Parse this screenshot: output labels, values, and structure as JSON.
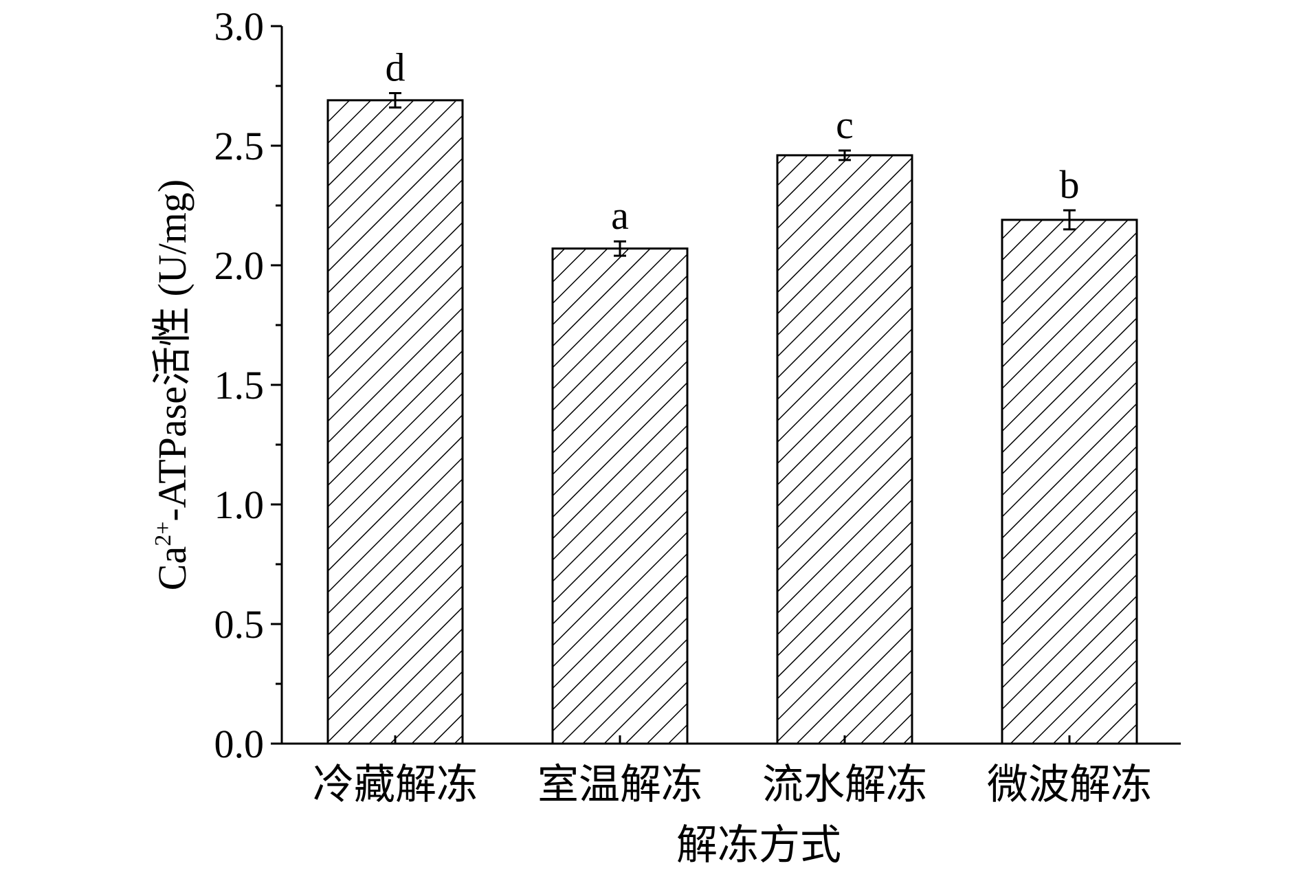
{
  "chart_data": {
    "type": "bar",
    "y_label": [
      "Ca",
      "2+",
      "-ATPase活性 (U/mg)"
    ],
    "x_label": "解冻方式",
    "categories": [
      "冷藏解冻",
      "室温解冻",
      "流水解冻",
      "微波解冻"
    ],
    "values": [
      2.69,
      2.07,
      2.46,
      2.19
    ],
    "errors": [
      0.03,
      0.03,
      0.02,
      0.04
    ],
    "annotations": [
      "d",
      "a",
      "c",
      "b"
    ],
    "ylim": [
      0,
      3.0
    ],
    "yticks": [
      {
        "value": 0,
        "label": "0.0"
      },
      {
        "value": 0.5,
        "label": "0.5"
      },
      {
        "value": 1.0,
        "label": "1.0"
      },
      {
        "value": 1.5,
        "label": "1.5"
      },
      {
        "value": 2.0,
        "label": "2.0"
      },
      {
        "value": 2.5,
        "label": "2.5"
      },
      {
        "value": 3.0,
        "label": "3.0"
      }
    ],
    "color": "#000000",
    "hatch": "diagonal"
  }
}
